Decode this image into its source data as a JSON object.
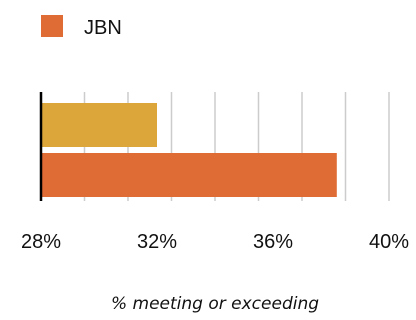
{
  "chart_data": {
    "type": "bar",
    "orientation": "horizontal",
    "title": "",
    "xlabel": "% meeting or exceeding",
    "ylabel": "",
    "xlim": [
      28,
      40
    ],
    "x_ticks": [
      28,
      32,
      36,
      40
    ],
    "x_tick_labels": [
      "28%",
      "32%",
      "36%",
      "40%"
    ],
    "grid": true,
    "legend_position": "top-left",
    "legend": [
      {
        "name": "JBN",
        "color": "#e06c35"
      }
    ],
    "bars": [
      {
        "value": 32,
        "color": "#dca63a"
      },
      {
        "value": 38.2,
        "color": "#e06c35"
      }
    ]
  }
}
